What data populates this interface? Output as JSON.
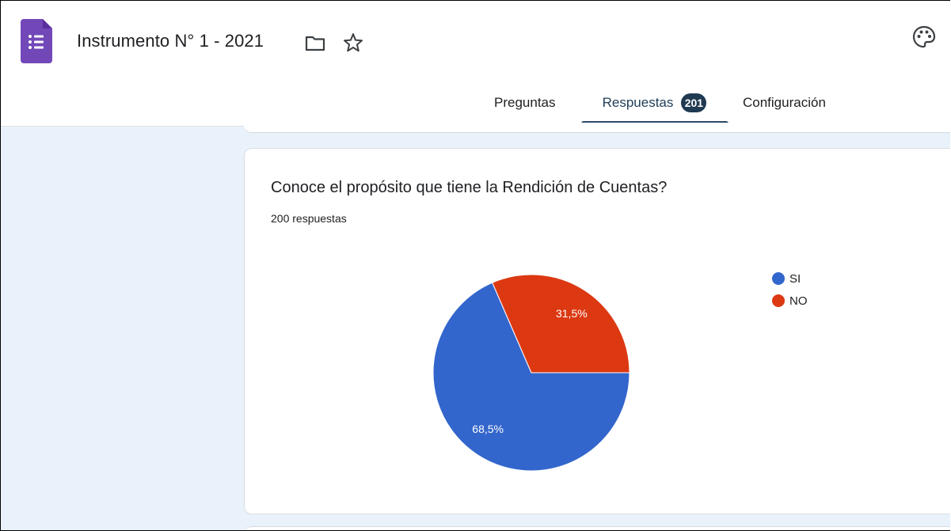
{
  "header": {
    "title": "Instrumento N° 1 - 2021",
    "icons": [
      "forms-app-icon",
      "folder-icon",
      "star-icon",
      "palette-icon"
    ]
  },
  "tabs": [
    {
      "label": "Preguntas"
    },
    {
      "label": "Respuestas",
      "badge": "201",
      "active": true
    },
    {
      "label": "Configuración"
    }
  ],
  "card": {
    "question": "Conoce el propósito que tiene la Rendición de Cuentas?",
    "responses": "200 respuestas"
  },
  "chart_data": {
    "type": "pie",
    "categories": [
      "SI",
      "NO"
    ],
    "values": [
      68.5,
      31.5
    ],
    "labels": [
      "68,5%",
      "31,5%"
    ],
    "colors": [
      "#3366cc",
      "#dc3912"
    ],
    "legend": "right"
  },
  "colors": {
    "accent": "#673ab7",
    "tab_active": "#2a4a66",
    "background": "#e9f1fa"
  }
}
